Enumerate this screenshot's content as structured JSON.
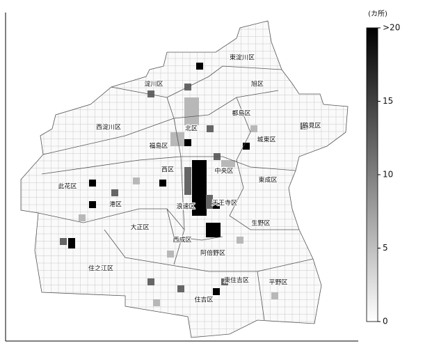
{
  "map": {
    "wards": [
      "東淀川区",
      "淀川区",
      "旭区",
      "都島区",
      "西淀川区",
      "北区",
      "鶴見区",
      "福島区",
      "城東区",
      "西区",
      "中央区",
      "東成区",
      "此花区",
      "港区",
      "浪速区",
      "天王寺区",
      "大正区",
      "生野区",
      "西成区",
      "阿倍野区",
      "住之江区",
      "東住吉区",
      "平野区",
      "住吉区"
    ],
    "colorbar": {
      "unit": "(カ所)",
      "range": [
        0,
        20
      ],
      "ticks": [
        0,
        5,
        10,
        15,
        {
          "value": 20,
          "label": ">20"
        }
      ]
    }
  }
}
